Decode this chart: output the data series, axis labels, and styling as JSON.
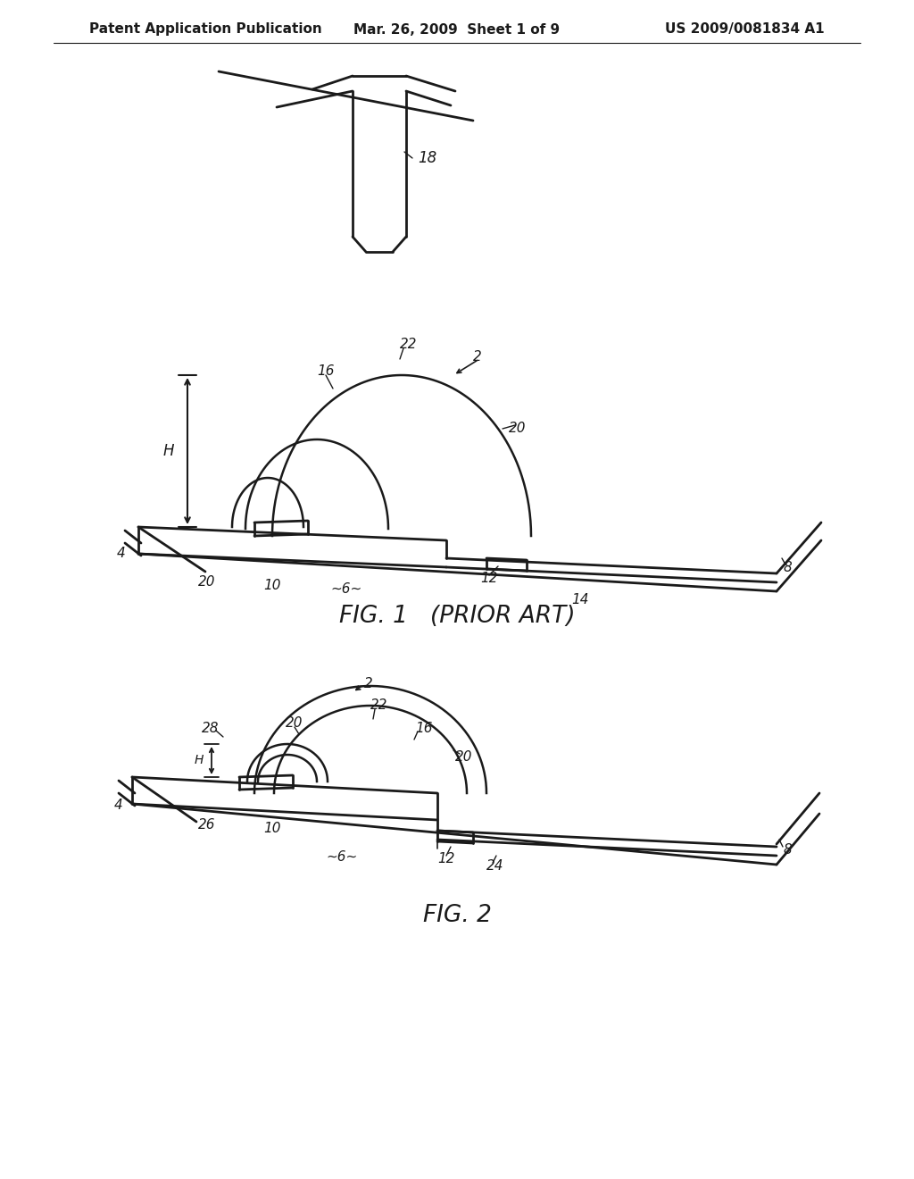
{
  "bg_color": "#ffffff",
  "header_left": "Patent Application Publication",
  "header_mid": "Mar. 26, 2009  Sheet 1 of 9",
  "header_right": "US 2009/0081834 A1",
  "fig1_label": "FIG. 1   (PRIOR ART)",
  "fig2_label": "FIG. 2",
  "line_color": "#1a1a1a",
  "text_color": "#1a1a1a"
}
